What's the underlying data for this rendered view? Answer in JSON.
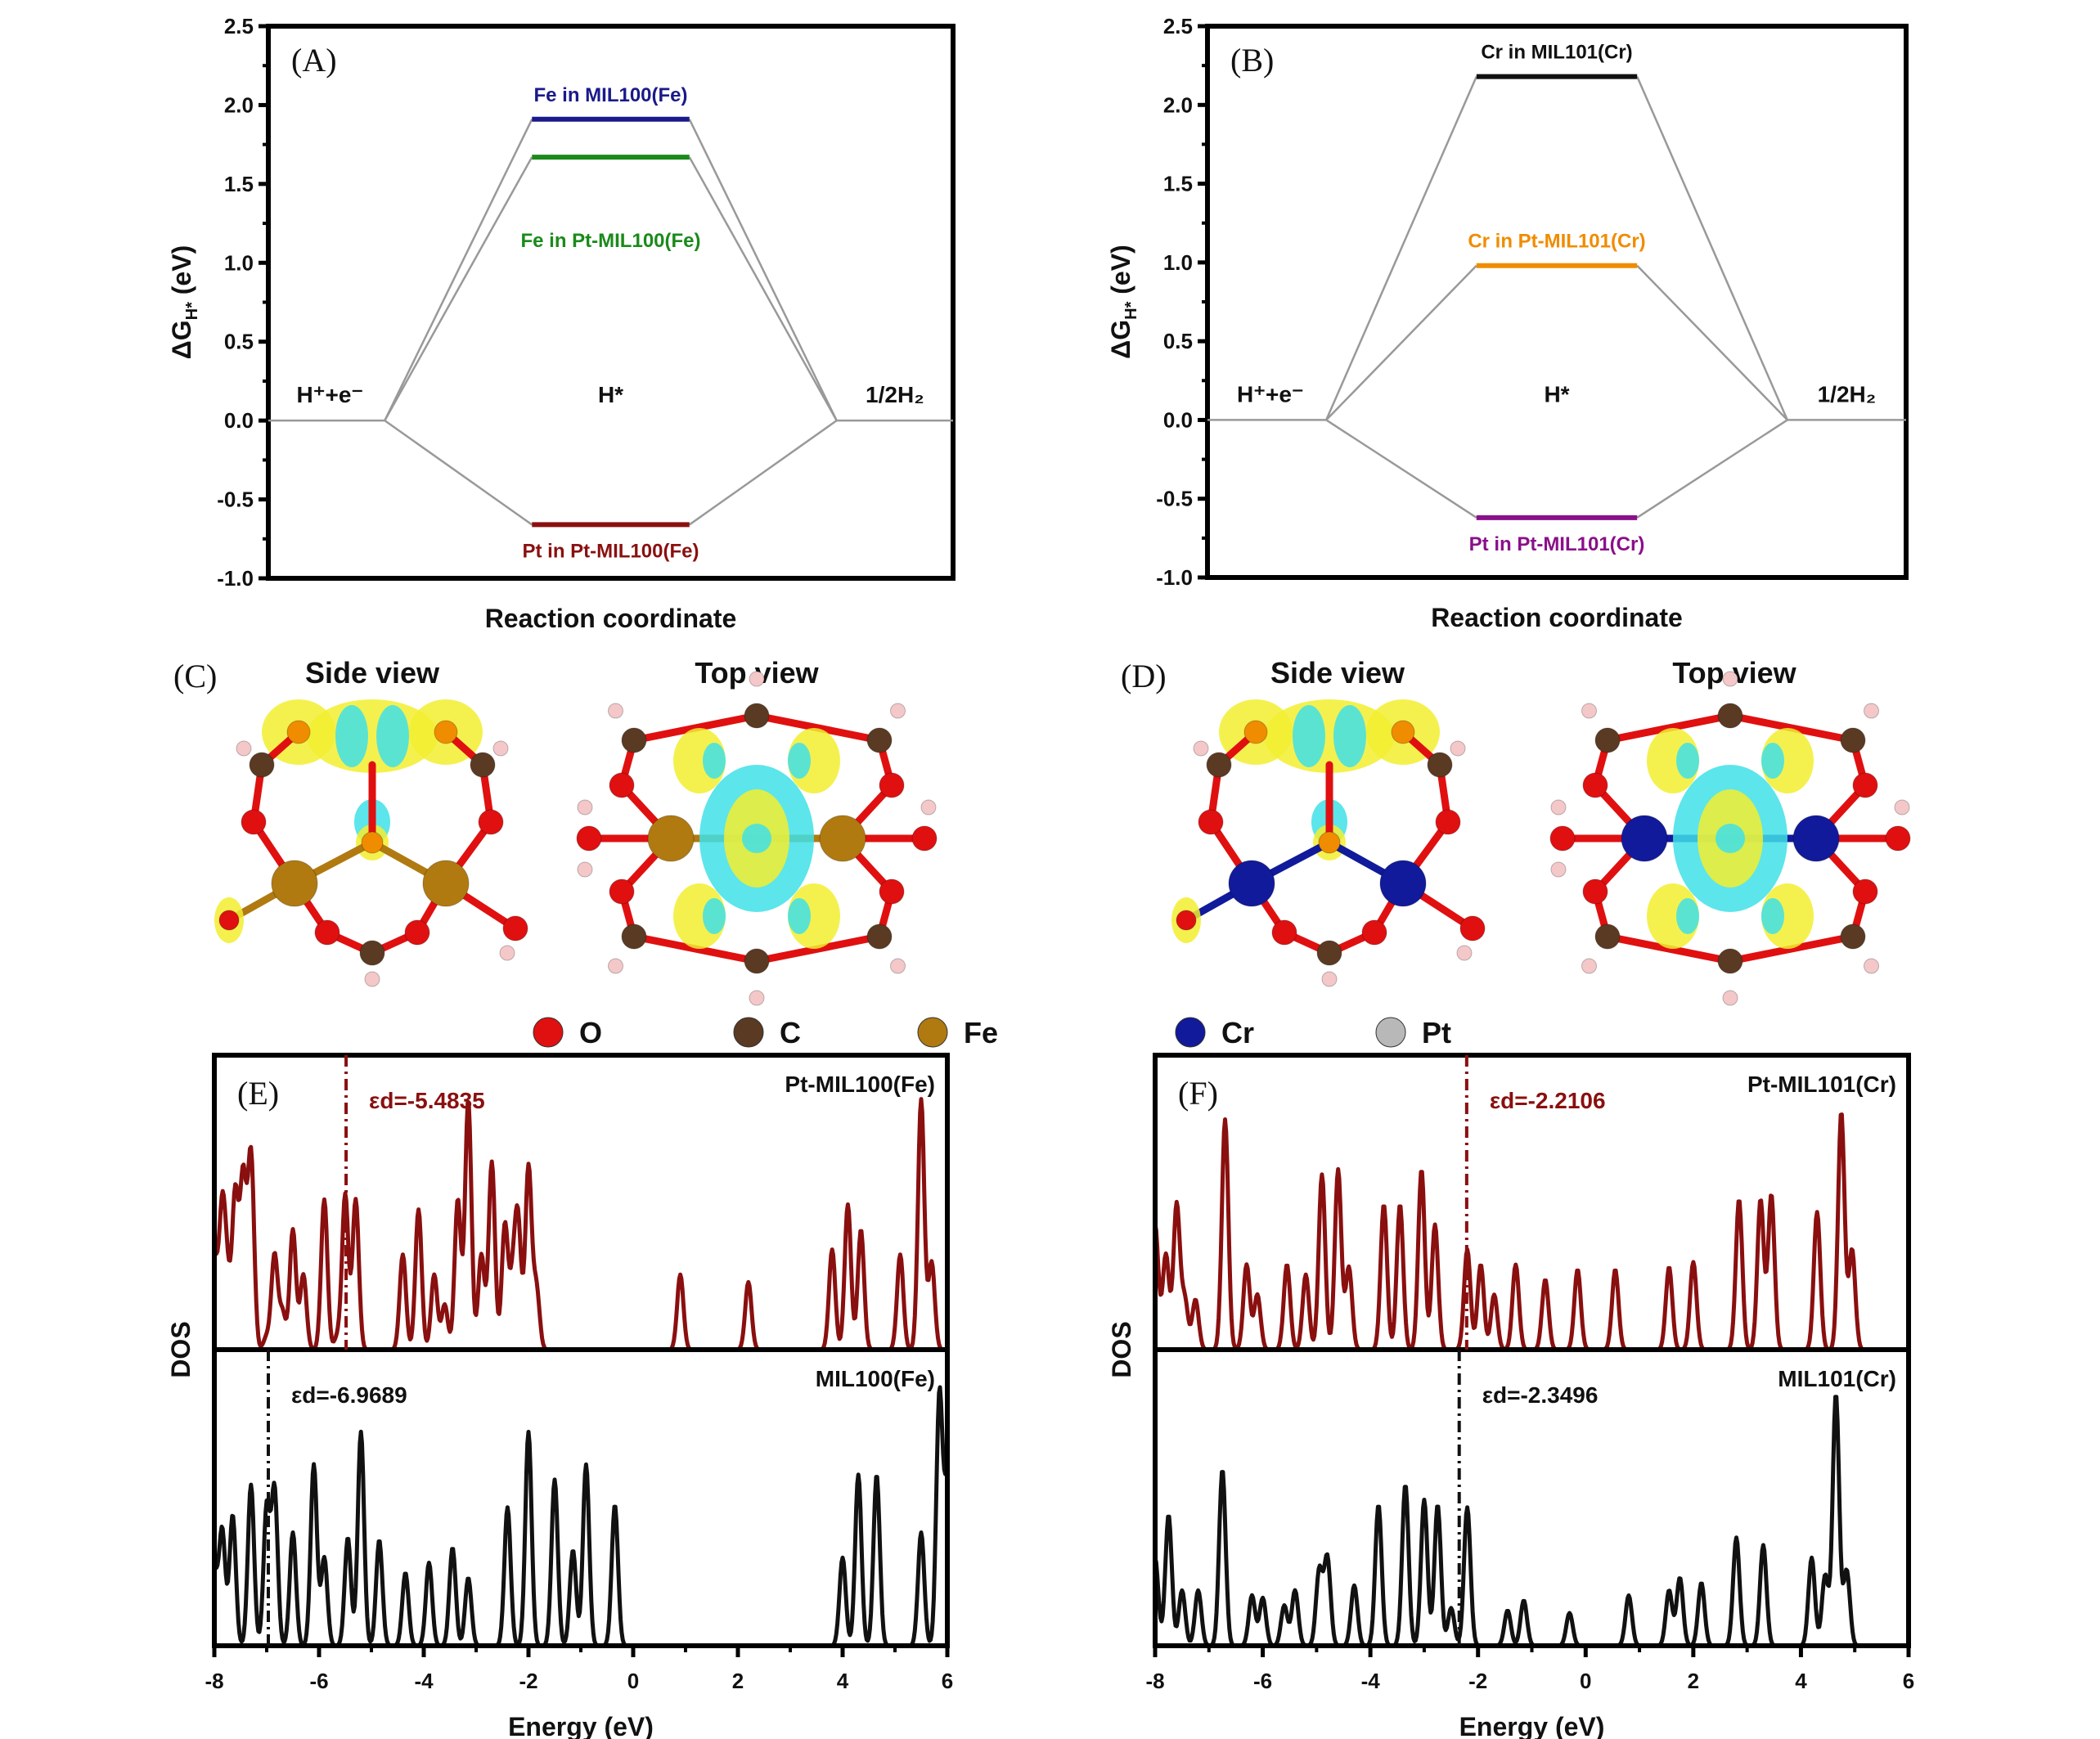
{
  "figure": {
    "panels": [
      "(A)",
      "(B)",
      "(C)",
      "(D)",
      "(E)",
      "(F)"
    ],
    "views": {
      "side": "Side view",
      "top": "Top view"
    },
    "legend": [
      {
        "label": "O",
        "color": "#e01010"
      },
      {
        "label": "C",
        "color": "#5a3a22"
      },
      {
        "label": "Fe",
        "color": "#b07a10"
      },
      {
        "label": "Cr",
        "color": "#101a9a"
      },
      {
        "label": "Pt",
        "color": "#b8b8b8"
      }
    ]
  },
  "chart_data": [
    {
      "id": "A",
      "type": "line",
      "title": "(A)",
      "xlabel": "Reaction coordinate",
      "ylabel": "ΔG_H* (eV)",
      "ylim": [
        -1.0,
        2.5
      ],
      "yticks": [
        "2.5",
        "2.0",
        "1.5",
        "1.0",
        "0.5",
        "0.0",
        "-0.5",
        "-1.0"
      ],
      "states": [
        "H⁺+e⁻",
        "H*",
        "1/2H₂"
      ],
      "series": [
        {
          "name": "Fe in MIL100(Fe)",
          "color": "#1a1a8a",
          "values": [
            0,
            1.91,
            0
          ]
        },
        {
          "name": "Fe in Pt-MIL100(Fe)",
          "color": "#1a8a1a",
          "values": [
            0,
            1.67,
            0
          ]
        },
        {
          "name": "Pt in Pt-MIL100(Fe)",
          "color": "#8a1010",
          "values": [
            0,
            -0.66,
            0
          ]
        }
      ]
    },
    {
      "id": "B",
      "type": "line",
      "title": "(B)",
      "xlabel": "Reaction coordinate",
      "ylabel": "ΔG_H* (eV)",
      "ylim": [
        -1.0,
        2.5
      ],
      "yticks": [
        "2.5",
        "2.0",
        "1.5",
        "1.0",
        "0.5",
        "0.0",
        "-0.5",
        "-1.0"
      ],
      "states": [
        "H⁺+e⁻",
        "H*",
        "1/2H₂"
      ],
      "series": [
        {
          "name": "Cr in MIL101(Cr)",
          "color": "#111111",
          "values": [
            0,
            2.18,
            0
          ]
        },
        {
          "name": "Cr in Pt-MIL101(Cr)",
          "color": "#f08c00",
          "values": [
            0,
            0.98,
            0
          ]
        },
        {
          "name": "Pt in Pt-MIL101(Cr)",
          "color": "#8a108a",
          "values": [
            0,
            -0.62,
            0
          ]
        }
      ]
    },
    {
      "id": "E",
      "type": "line",
      "title": "(E)",
      "xlabel": "Energy (eV)",
      "ylabel": "DOS",
      "xlim": [
        -8,
        6
      ],
      "xticks": [
        "-8",
        "-6",
        "-4",
        "-2",
        "0",
        "2",
        "4",
        "6"
      ],
      "series": [
        {
          "name": "Pt-MIL100(Fe)",
          "color": "#8a0f0f",
          "d_band_center": -5.4835,
          "d_band_label": "εd=-5.4835",
          "peaks": [
            [
              -8.0,
              0.35
            ],
            [
              -7.85,
              0.55
            ],
            [
              -7.75,
              0.25
            ],
            [
              -7.6,
              0.62
            ],
            [
              -7.45,
              0.68
            ],
            [
              -7.3,
              0.78
            ],
            [
              -7.0,
              0.05
            ],
            [
              -6.85,
              0.38
            ],
            [
              -6.7,
              0.15
            ],
            [
              -6.5,
              0.48
            ],
            [
              -6.3,
              0.3
            ],
            [
              -5.9,
              0.6
            ],
            [
              -5.65,
              0.05
            ],
            [
              -5.5,
              0.62
            ],
            [
              -5.3,
              0.6
            ],
            [
              -4.4,
              0.38
            ],
            [
              -4.1,
              0.56
            ],
            [
              -3.8,
              0.3
            ],
            [
              -3.6,
              0.18
            ],
            [
              -3.35,
              0.6
            ],
            [
              -3.15,
              1.0
            ],
            [
              -2.9,
              0.38
            ],
            [
              -2.7,
              0.75
            ],
            [
              -2.45,
              0.5
            ],
            [
              -2.3,
              0.25
            ],
            [
              -2.2,
              0.5
            ],
            [
              -2.0,
              0.73
            ],
            [
              -1.85,
              0.25
            ],
            [
              0.9,
              0.3
            ],
            [
              2.2,
              0.27
            ],
            [
              3.8,
              0.4
            ],
            [
              4.1,
              0.58
            ],
            [
              4.35,
              0.48
            ],
            [
              5.1,
              0.38
            ],
            [
              5.5,
              1.0
            ],
            [
              5.7,
              0.35
            ]
          ]
        },
        {
          "name": "MIL100(Fe)",
          "color": "#111111",
          "d_band_center": -6.9689,
          "d_band_label": "εd=-6.9689",
          "peaks": [
            [
              -8.0,
              0.28
            ],
            [
              -7.85,
              0.46
            ],
            [
              -7.65,
              0.52
            ],
            [
              -7.3,
              0.64
            ],
            [
              -7.0,
              0.55
            ],
            [
              -6.85,
              0.62
            ],
            [
              -6.5,
              0.45
            ],
            [
              -6.1,
              0.72
            ],
            [
              -5.9,
              0.35
            ],
            [
              -5.45,
              0.43
            ],
            [
              -5.2,
              0.85
            ],
            [
              -4.85,
              0.42
            ],
            [
              -4.35,
              0.29
            ],
            [
              -3.9,
              0.33
            ],
            [
              -3.45,
              0.39
            ],
            [
              -3.15,
              0.27
            ],
            [
              -2.4,
              0.55
            ],
            [
              -2.0,
              0.85
            ],
            [
              -1.5,
              0.66
            ],
            [
              -1.15,
              0.38
            ],
            [
              -0.9,
              0.72
            ],
            [
              -0.35,
              0.56
            ],
            [
              4.0,
              0.35
            ],
            [
              4.3,
              0.68
            ],
            [
              4.65,
              0.68
            ],
            [
              5.5,
              0.45
            ],
            [
              5.85,
              1.0
            ],
            [
              6.0,
              0.62
            ]
          ]
        }
      ]
    },
    {
      "id": "F",
      "type": "line",
      "title": "(F)",
      "xlabel": "Energy (eV)",
      "ylabel": "DOS",
      "xlim": [
        -8,
        6
      ],
      "xticks": [
        "-8",
        "-6",
        "-4",
        "-2",
        "0",
        "2",
        "4",
        "6"
      ],
      "series": [
        {
          "name": "Pt-MIL101(Cr)",
          "color": "#8a0f0f",
          "d_band_center": -2.2106,
          "d_band_label": "εd=-2.2106",
          "peaks": [
            [
              -8.0,
              0.5
            ],
            [
              -7.8,
              0.38
            ],
            [
              -7.6,
              0.58
            ],
            [
              -7.45,
              0.2
            ],
            [
              -7.25,
              0.2
            ],
            [
              -6.7,
              0.92
            ],
            [
              -6.3,
              0.34
            ],
            [
              -6.1,
              0.22
            ],
            [
              -5.55,
              0.34
            ],
            [
              -5.2,
              0.3
            ],
            [
              -4.9,
              0.7
            ],
            [
              -4.6,
              0.72
            ],
            [
              -4.4,
              0.33
            ],
            [
              -3.75,
              0.58
            ],
            [
              -3.45,
              0.58
            ],
            [
              -3.05,
              0.72
            ],
            [
              -2.8,
              0.5
            ],
            [
              -2.2,
              0.4
            ],
            [
              -1.95,
              0.34
            ],
            [
              -1.7,
              0.22
            ],
            [
              -1.3,
              0.34
            ],
            [
              -0.75,
              0.28
            ],
            [
              -0.15,
              0.32
            ],
            [
              0.55,
              0.32
            ],
            [
              1.55,
              0.33
            ],
            [
              2.0,
              0.35
            ],
            [
              2.85,
              0.6
            ],
            [
              3.25,
              0.6
            ],
            [
              3.45,
              0.62
            ],
            [
              4.3,
              0.55
            ],
            [
              4.75,
              0.95
            ],
            [
              4.95,
              0.4
            ]
          ]
        },
        {
          "name": "MIL101(Cr)",
          "color": "#111111",
          "d_band_center": -2.3496,
          "d_band_label": "εd=-2.3496",
          "peaks": [
            [
              -8.0,
              0.35
            ],
            [
              -7.75,
              0.52
            ],
            [
              -7.5,
              0.22
            ],
            [
              -7.2,
              0.22
            ],
            [
              -6.75,
              0.7
            ],
            [
              -6.2,
              0.2
            ],
            [
              -6.0,
              0.19
            ],
            [
              -5.6,
              0.16
            ],
            [
              -5.4,
              0.22
            ],
            [
              -4.95,
              0.3
            ],
            [
              -4.8,
              0.35
            ],
            [
              -4.3,
              0.24
            ],
            [
              -3.85,
              0.56
            ],
            [
              -3.35,
              0.64
            ],
            [
              -3.0,
              0.58
            ],
            [
              -2.75,
              0.56
            ],
            [
              -2.5,
              0.15
            ],
            [
              -2.2,
              0.55
            ],
            [
              -1.45,
              0.14
            ],
            [
              -1.15,
              0.18
            ],
            [
              -0.3,
              0.13
            ],
            [
              0.8,
              0.2
            ],
            [
              1.55,
              0.22
            ],
            [
              1.75,
              0.27
            ],
            [
              2.15,
              0.25
            ],
            [
              2.8,
              0.43
            ],
            [
              3.3,
              0.4
            ],
            [
              4.2,
              0.35
            ],
            [
              4.45,
              0.28
            ],
            [
              4.65,
              1.0
            ],
            [
              4.85,
              0.3
            ]
          ]
        }
      ]
    }
  ]
}
